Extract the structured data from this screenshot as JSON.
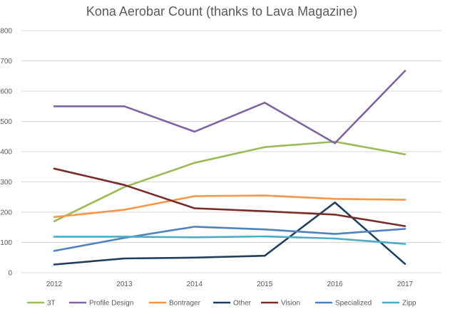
{
  "chart_data": {
    "type": "line",
    "title": "Kona Aerobar Count (thanks to Lava Magazine)",
    "xlabel": "",
    "ylabel": "",
    "x": [
      "2012",
      "2013",
      "2014",
      "2015",
      "2016",
      "2017"
    ],
    "ylim": [
      0,
      800
    ],
    "yticks": [
      "0",
      "100",
      "200",
      "300",
      "400",
      "500",
      "600",
      "700",
      "800"
    ],
    "grid": "horizontal",
    "legend_position": "bottom",
    "series": [
      {
        "name": "3T",
        "color": "#9bbb59",
        "values": [
          170,
          283,
          363,
          415,
          433,
          391
        ]
      },
      {
        "name": "Profile Design",
        "color": "#8064a2",
        "values": [
          550,
          550,
          466,
          562,
          428,
          667
        ]
      },
      {
        "name": "Bontrager",
        "color": "#f79646",
        "values": [
          184,
          208,
          253,
          255,
          244,
          241
        ]
      },
      {
        "name": "Other",
        "color": "#1f3f5f",
        "values": [
          27,
          47,
          50,
          56,
          232,
          29
        ]
      },
      {
        "name": "Vision",
        "color": "#772c2a",
        "values": [
          344,
          290,
          213,
          203,
          192,
          154
        ]
      },
      {
        "name": "Specialized",
        "color": "#4f81bd",
        "values": [
          72,
          115,
          152,
          143,
          128,
          145
        ]
      },
      {
        "name": "Zipp",
        "color": "#4bacc6",
        "values": [
          119,
          119,
          117,
          120,
          113,
          95
        ]
      }
    ]
  }
}
